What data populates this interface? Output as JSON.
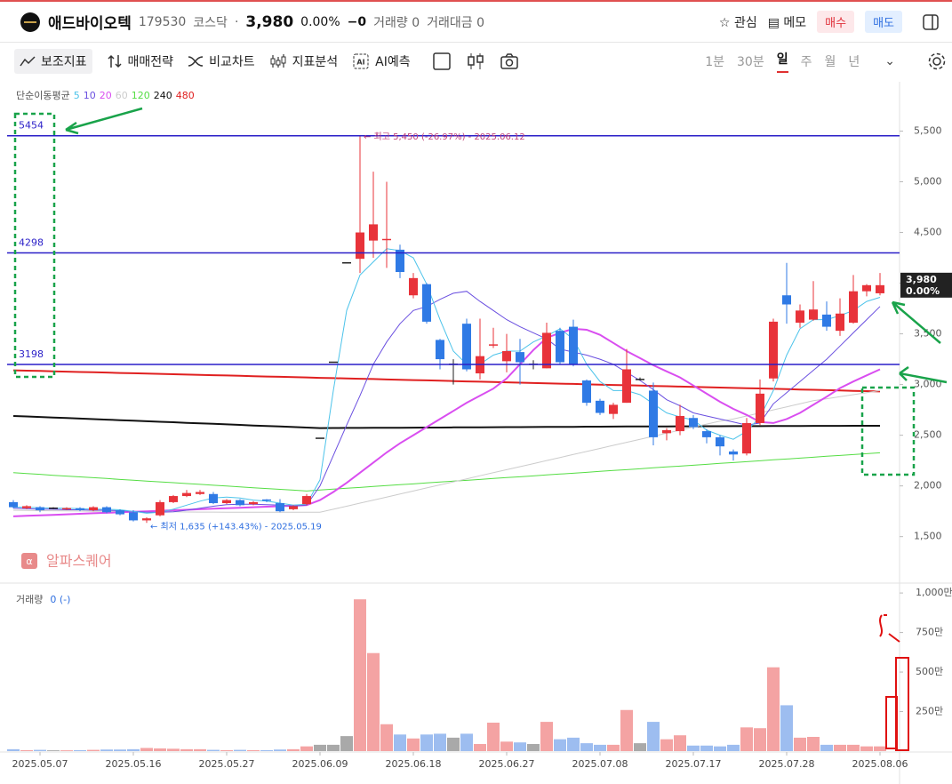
{
  "header": {
    "name": "애드바이오텍",
    "code": "179530",
    "market": "코스닥",
    "separator": "·",
    "price": "3,980",
    "change_rate": "0.00%",
    "change": "−0",
    "volume": "거래량 0",
    "amount": "거래대금 0",
    "watch": "관심",
    "memo": "메모",
    "buy": "매수",
    "sell": "매도"
  },
  "toolbar": {
    "indicators": "보조지표",
    "strategy": "매매전략",
    "compare": "비교차트",
    "analysis": "지표분석",
    "ai": "AI예측",
    "periods": [
      "1분",
      "30분",
      "일",
      "주",
      "월",
      "년"
    ],
    "active_period": 2
  },
  "watermark": "알파스퀘어",
  "chart_data": {
    "type": "candlestick",
    "legend_title": "단순이동평균",
    "categories": [
      null,
      null,
      "2025.05.07",
      null,
      null,
      null,
      null,
      null,
      null,
      "2025.05.16",
      null,
      null,
      null,
      null,
      null,
      null,
      "2025.05.27",
      null,
      null,
      null,
      null,
      null,
      null,
      "2025.06.09",
      null,
      null,
      null,
      null,
      null,
      null,
      "2025.06.18",
      null,
      null,
      null,
      null,
      null,
      null,
      "2025.06.27",
      null,
      null,
      null,
      null,
      null,
      null,
      "2025.07.08",
      null,
      null,
      null,
      null,
      null,
      null,
      "2025.07.17",
      null,
      null,
      null,
      null,
      null,
      null,
      "2025.07.28",
      null,
      null,
      null,
      null,
      null,
      null,
      "2025.08.06"
    ],
    "open": [
      1840,
      1780,
      1790,
      1780,
      1770,
      1780,
      1760,
      1790,
      1760,
      1740,
      1660,
      1710,
      1840,
      1900,
      1920,
      1920,
      1830,
      1860,
      1820,
      1860,
      1830,
      1770,
      1820,
      2470,
      3220,
      4200,
      4240,
      4420,
      4420,
      4330,
      3880,
      3990,
      3440,
      3200,
      3600,
      3110,
      3380,
      3230,
      3320,
      3200,
      3160,
      3530,
      3570,
      3040,
      2840,
      2710,
      2820,
      3050,
      2940,
      2520,
      2540,
      2670,
      2540,
      2480,
      2340,
      2320,
      2620,
      3060,
      3880,
      3610,
      3640,
      3690,
      3530,
      3610,
      3920,
      3900
    ],
    "high": [
      1860,
      1810,
      1800,
      1790,
      1790,
      1790,
      1800,
      1800,
      1770,
      1760,
      1690,
      1860,
      1910,
      1960,
      1960,
      1940,
      1870,
      1870,
      1850,
      1870,
      1870,
      1810,
      1920,
      2470,
      3220,
      4200,
      5450,
      5100,
      5000,
      4380,
      4100,
      4000,
      3450,
      3250,
      3650,
      3650,
      3560,
      3500,
      3450,
      3240,
      3610,
      3560,
      3640,
      3050,
      2860,
      2820,
      3350,
      3070,
      3020,
      2570,
      2800,
      2700,
      2560,
      2500,
      2360,
      2670,
      3050,
      3650,
      4200,
      3790,
      4020,
      3820,
      3850,
      4080,
      3990,
      4100
    ],
    "low": [
      1780,
      1770,
      1740,
      1770,
      1760,
      1750,
      1750,
      1730,
      1710,
      1650,
      1635,
      1700,
      1830,
      1890,
      1910,
      1820,
      1820,
      1800,
      1810,
      1840,
      1740,
      1760,
      1810,
      2470,
      3220,
      4200,
      4100,
      4250,
      4150,
      4050,
      3850,
      3600,
      3150,
      3000,
      3130,
      3050,
      3360,
      3120,
      3000,
      3150,
      3160,
      3200,
      3180,
      2790,
      2700,
      2660,
      2820,
      3040,
      2400,
      2450,
      2500,
      2560,
      2420,
      2300,
      2250,
      2300,
      2600,
      3030,
      3600,
      3560,
      3630,
      3530,
      3480,
      3600,
      3870,
      3880
    ],
    "close": [
      1790,
      1800,
      1760,
      1780,
      1775,
      1760,
      1790,
      1740,
      1720,
      1660,
      1680,
      1840,
      1900,
      1930,
      1940,
      1830,
      1860,
      1810,
      1840,
      1850,
      1750,
      1800,
      1900,
      2470,
      3220,
      4200,
      4500,
      4580,
      4430,
      4110,
      4050,
      3620,
      3250,
      3200,
      3150,
      3280,
      3390,
      3330,
      3220,
      3200,
      3510,
      3220,
      3200,
      2820,
      2720,
      2800,
      3150,
      3050,
      2480,
      2550,
      2690,
      2580,
      2480,
      2390,
      2310,
      2620,
      2910,
      3620,
      3790,
      3730,
      3740,
      3570,
      3700,
      3920,
      3980,
      3980
    ],
    "up_color": "#e8333a",
    "down_color": "#2f7ae5",
    "flat_color": "#222222",
    "series": [
      {
        "name": "480",
        "color": "#e02020",
        "line_width": 2,
        "values": [
          3140,
          3137,
          3134,
          3130,
          3127,
          3124,
          3121,
          3118,
          3114,
          3111,
          3108,
          3105,
          3102,
          3098,
          3095,
          3092,
          3089,
          3086,
          3082,
          3079,
          3076,
          3073,
          3070,
          3066,
          3063,
          3060,
          3057,
          3054,
          3050,
          3047,
          3044,
          3041,
          3038,
          3034,
          3031,
          3028,
          3025,
          3022,
          3018,
          3015,
          3012,
          3009,
          3006,
          3002,
          2999,
          2996,
          2993,
          2990,
          2986,
          2983,
          2980,
          2977,
          2974,
          2970,
          2967,
          2964,
          2961,
          2958,
          2954,
          2951,
          2948,
          2945,
          2942,
          2938,
          2935,
          2932
        ]
      },
      {
        "name": "240",
        "color": "#111111",
        "line_width": 2,
        "values": [
          2690,
          2685,
          2680,
          2674,
          2669,
          2664,
          2659,
          2654,
          2648,
          2643,
          2638,
          2633,
          2628,
          2622,
          2617,
          2612,
          2607,
          2602,
          2596,
          2591,
          2586,
          2581,
          2576,
          2570,
          2571,
          2572,
          2572,
          2573,
          2574,
          2574,
          2575,
          2576,
          2576,
          2577,
          2578,
          2578,
          2579,
          2580,
          2580,
          2581,
          2582,
          2582,
          2583,
          2584,
          2584,
          2585,
          2586,
          2586,
          2587,
          2587,
          2588,
          2588,
          2589,
          2589,
          2590,
          2590,
          2590,
          2591,
          2591,
          2591,
          2592,
          2592,
          2592,
          2593,
          2593,
          2593
        ]
      },
      {
        "name": "120",
        "color": "#55dd44",
        "line_width": 1,
        "values": [
          2130,
          2122,
          2114,
          2105,
          2097,
          2089,
          2081,
          2073,
          2064,
          2056,
          2048,
          2040,
          2032,
          2023,
          2015,
          2007,
          1999,
          1991,
          1982,
          1974,
          1966,
          1958,
          1950,
          1959,
          1968,
          1977,
          1985,
          1994,
          2003,
          2012,
          2020,
          2029,
          2038,
          2047,
          2055,
          2064,
          2073,
          2082,
          2090,
          2099,
          2108,
          2117,
          2125,
          2134,
          2143,
          2152,
          2160,
          2169,
          2178,
          2187,
          2195,
          2204,
          2213,
          2222,
          2230,
          2239,
          2248,
          2257,
          2265,
          2274,
          2283,
          2292,
          2300,
          2309,
          2318,
          2327
        ]
      },
      {
        "name": "60",
        "color": "#cccccc",
        "line_width": 1,
        "values": [
          1760,
          1758,
          1756,
          1755,
          1753,
          1752,
          1750,
          1749,
          1748,
          1747,
          1746,
          1745,
          1744,
          1743,
          1742,
          1742,
          1741,
          1741,
          1740,
          1740,
          1740,
          1740,
          1740,
          1740,
          1770,
          1800,
          1830,
          1860,
          1890,
          1920,
          1950,
          1980,
          2010,
          2040,
          2070,
          2100,
          2130,
          2160,
          2190,
          2220,
          2250,
          2280,
          2310,
          2340,
          2370,
          2400,
          2430,
          2460,
          2490,
          2520,
          2550,
          2580,
          2610,
          2640,
          2660,
          2690,
          2720,
          2750,
          2780,
          2810,
          2840,
          2860,
          2880,
          2900,
          2920,
          2940
        ]
      },
      {
        "name": "20",
        "color": "#d94ef0",
        "line_width": 2,
        "values": [
          1700,
          1705,
          1710,
          1715,
          1720,
          1725,
          1730,
          1735,
          1740,
          1745,
          1750,
          1755,
          1760,
          1765,
          1770,
          1775,
          1780,
          1785,
          1790,
          1795,
          1800,
          1805,
          1810,
          1860,
          1940,
          2030,
          2130,
          2230,
          2330,
          2420,
          2500,
          2580,
          2660,
          2740,
          2820,
          2890,
          2960,
          3060,
          3200,
          3340,
          3460,
          3510,
          3550,
          3540,
          3490,
          3410,
          3330,
          3260,
          3190,
          3130,
          3070,
          2990,
          2910,
          2830,
          2760,
          2700,
          2630,
          2620,
          2660,
          2720,
          2800,
          2880,
          2965,
          3030,
          3090,
          3150
        ]
      },
      {
        "name": "10",
        "color": "#6a4fe0",
        "line_width": 1,
        "values": [
          1780,
          1775,
          1770,
          1770,
          1765,
          1765,
          1760,
          1760,
          1755,
          1750,
          1740,
          1740,
          1745,
          1760,
          1780,
          1800,
          1815,
          1820,
          1820,
          1815,
          1810,
          1800,
          1810,
          2000,
          2300,
          2600,
          2890,
          3200,
          3420,
          3600,
          3730,
          3770,
          3840,
          3900,
          3920,
          3820,
          3730,
          3640,
          3570,
          3510,
          3450,
          3350,
          3320,
          3290,
          3250,
          3200,
          3120,
          3040,
          2950,
          2850,
          2790,
          2720,
          2690,
          2660,
          2630,
          2600,
          2620,
          2810,
          2920,
          3030,
          3140,
          3250,
          3380,
          3510,
          3640,
          3770
        ]
      },
      {
        "name": "5",
        "color": "#4cc3ea",
        "line_width": 1,
        "values": [
          1790,
          1790,
          1785,
          1780,
          1780,
          1775,
          1770,
          1770,
          1765,
          1750,
          1730,
          1740,
          1770,
          1810,
          1850,
          1880,
          1890,
          1880,
          1860,
          1850,
          1830,
          1810,
          1820,
          2060,
          2940,
          3730,
          4080,
          4210,
          4340,
          4320,
          4250,
          3990,
          3640,
          3330,
          3200,
          3200,
          3290,
          3330,
          3330,
          3420,
          3480,
          3550,
          3450,
          3200,
          3030,
          2940,
          2940,
          2900,
          2810,
          2720,
          2680,
          2650,
          2550,
          2500,
          2460,
          2540,
          2680,
          2940,
          3290,
          3550,
          3640,
          3640,
          3680,
          3730,
          3820,
          3860
        ]
      }
    ],
    "legend_order": [
      6,
      5,
      4,
      3,
      2,
      1,
      0
    ],
    "hlines": [
      5454,
      4298,
      3198
    ],
    "hline_color": "#2a1fc8",
    "high_annotation": "← 최고 5,450 (-26.97%) - 2025.06.12",
    "low_annotation": "← 최저 1,635 (+143.43%) - 2025.05.19",
    "last_price_label": "3,980",
    "last_change_label": "0.00%",
    "ylim": [
      1050,
      5960
    ],
    "yticks": [
      {
        "value": 1500,
        "label": "1,500"
      },
      {
        "value": 2000,
        "label": "2,000"
      },
      {
        "value": 2500,
        "label": "2,500"
      },
      {
        "value": 3000,
        "label": "3,000"
      },
      {
        "value": 3500,
        "label": "3,500"
      },
      {
        "value": 4000,
        "label": "4,000"
      },
      {
        "value": 4500,
        "label": "4,500"
      },
      {
        "value": 5000,
        "label": "5,000"
      },
      {
        "value": 5500,
        "label": "5,500"
      }
    ],
    "volume": {
      "title": "거래량",
      "legend_value": "0 (-)",
      "values": [
        12,
        6,
        8,
        5,
        5,
        6,
        8,
        10,
        10,
        12,
        20,
        17,
        15,
        12,
        12,
        8,
        6,
        8,
        6,
        6,
        10,
        12,
        30,
        40,
        40,
        95,
        960,
        620,
        170,
        105,
        80,
        105,
        110,
        85,
        110,
        45,
        180,
        60,
        55,
        45,
        185,
        75,
        85,
        50,
        40,
        40,
        260,
        50,
        185,
        75,
        100,
        35,
        35,
        30,
        40,
        150,
        145,
        530,
        290,
        85,
        90,
        40,
        40,
        40,
        30,
        30
      ],
      "up_color": "#f4a3a3",
      "down_color": "#9dbdf0",
      "flat_color": "#a9a9a9",
      "ylim": [
        0,
        1040
      ],
      "yticks": [
        {
          "value": 250,
          "label": "250만"
        },
        {
          "value": 500,
          "label": "500만"
        },
        {
          "value": 750,
          "label": "750만"
        },
        {
          "value": 1000,
          "label": "1,000만"
        }
      ]
    }
  }
}
